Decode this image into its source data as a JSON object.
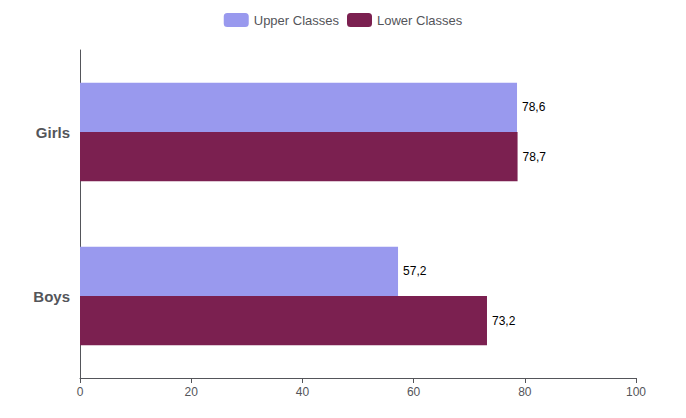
{
  "chart_data": {
    "type": "bar",
    "orientation": "horizontal",
    "categories": [
      "Girls",
      "Boys"
    ],
    "series": [
      {
        "name": "Upper Classes",
        "color": "#9999ee",
        "values": [
          78.6,
          57.2
        ],
        "value_labels": [
          "78,6",
          "57,2"
        ]
      },
      {
        "name": "Lower Classes",
        "color": "#7b2050",
        "values": [
          78.7,
          73.2
        ],
        "value_labels": [
          "78,7",
          "73,2"
        ]
      }
    ],
    "xlim": [
      0,
      100
    ],
    "xticks": [
      0,
      20,
      40,
      60,
      80,
      100
    ],
    "grid": false,
    "legend": "top",
    "data_labels": true
  }
}
